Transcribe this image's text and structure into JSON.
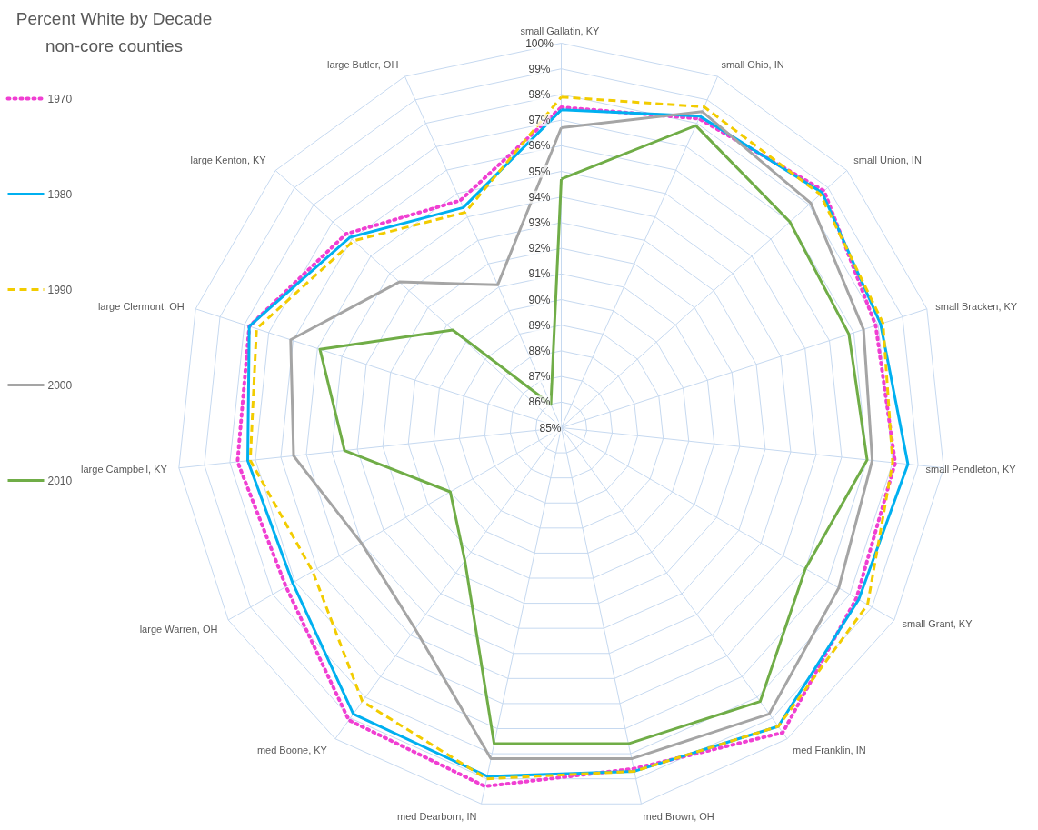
{
  "chart_data": {
    "type": "radar",
    "title": "Percent White by Decade",
    "subtitle": "non-core counties",
    "categories": [
      "small  Gallatin, KY",
      "small  Ohio, IN",
      "small  Union, IN",
      "small  Bracken, KY",
      "small  Pendleton, KY",
      "small  Grant, KY",
      "med  Franklin, IN",
      "med  Brown, OH",
      "med  Dearborn, IN",
      "med  Boone, KY",
      "large  Warren, OH",
      "large  Campbell, KY",
      "large  Clermont, OH",
      "large  Kenton, KY",
      "large  Butler, OH"
    ],
    "series": [
      {
        "name": "1970",
        "color": "#f03fd2",
        "line_style": "dotted",
        "values": [
          97.5,
          98.2,
          98.8,
          97.9,
          98.1,
          98.3,
          99.7,
          98.6,
          99.3,
          99.1,
          97.4,
          97.7,
          97.8,
          96.3,
          94.7
        ]
      },
      {
        "name": "1980",
        "color": "#00b0f0",
        "line_style": "solid",
        "values": [
          97.4,
          98.3,
          98.7,
          98.1,
          98.6,
          98.4,
          99.4,
          98.7,
          98.9,
          98.8,
          97.1,
          97.3,
          97.8,
          96.1,
          94.4
        ]
      },
      {
        "name": "1990",
        "color": "#f2cc00",
        "line_style": "dashed",
        "values": [
          97.9,
          98.7,
          98.6,
          98.2,
          98.0,
          98.8,
          99.4,
          98.7,
          99.0,
          98.2,
          96.2,
          97.2,
          97.5,
          95.9,
          94.2
        ]
      },
      {
        "name": "2000",
        "color": "#a5a5a5",
        "line_style": "solid",
        "values": [
          96.7,
          98.5,
          98.1,
          97.4,
          97.2,
          97.5,
          98.8,
          98.2,
          98.2,
          94.7,
          94.0,
          95.5,
          96.1,
          93.5,
          91.1
        ]
      },
      {
        "name": "2010",
        "color": "#70ad47",
        "line_style": "solid",
        "values": [
          94.7,
          97.9,
          97.0,
          96.8,
          97.0,
          96.0,
          98.2,
          97.6,
          97.6,
          91.4,
          90.0,
          93.5,
          94.9,
          90.7,
          86.0
        ]
      }
    ],
    "ylim": [
      85,
      100
    ],
    "yticks": [
      {
        "value": 85,
        "label": "85%"
      },
      {
        "value": 86,
        "label": "86%"
      },
      {
        "value": 87,
        "label": "87%"
      },
      {
        "value": 88,
        "label": "88%"
      },
      {
        "value": 89,
        "label": "89%"
      },
      {
        "value": 90,
        "label": "90%"
      },
      {
        "value": 91,
        "label": "91%"
      },
      {
        "value": 92,
        "label": "92%"
      },
      {
        "value": 93,
        "label": "93%"
      },
      {
        "value": 94,
        "label": "94%"
      },
      {
        "value": 95,
        "label": "95%"
      },
      {
        "value": 96,
        "label": "96%"
      },
      {
        "value": 97,
        "label": "97%"
      },
      {
        "value": 98,
        "label": "98%"
      },
      {
        "value": 99,
        "label": "99%"
      },
      {
        "value": 100,
        "label": "100%"
      }
    ],
    "grid": true,
    "legend": "left"
  }
}
